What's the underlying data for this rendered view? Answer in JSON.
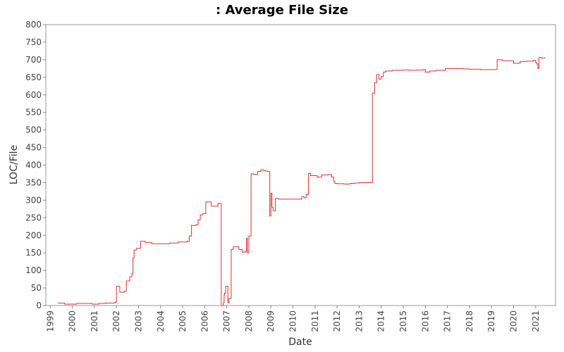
{
  "chart_data": {
    "type": "line",
    "title": ": Average File Size",
    "xlabel": "Date",
    "ylabel": "LOC/File",
    "xlim": [
      1998.8,
      2021.9
    ],
    "ylim": [
      0,
      800
    ],
    "y_ticks": [
      0,
      50,
      100,
      150,
      200,
      250,
      300,
      350,
      400,
      450,
      500,
      550,
      600,
      650,
      700,
      750,
      800
    ],
    "x_ticks": [
      "1999",
      "2000",
      "2001",
      "2002",
      "2003",
      "2004",
      "2005",
      "2006",
      "2007",
      "2008",
      "2009",
      "2010",
      "2011",
      "2012",
      "2013",
      "2014",
      "2015",
      "2016",
      "2017",
      "2018",
      "2019",
      "2020",
      "2021"
    ],
    "grid": false,
    "line_color": "#dd3333",
    "series": [
      {
        "step": true,
        "x": [
          1999.35,
          1999.65,
          2000.2,
          2000.5,
          2000.9,
          2001.2,
          2001.5,
          2001.9,
          2001.95,
          2002.0,
          2002.15,
          2002.35,
          2002.45,
          2002.6,
          2002.7,
          2002.75,
          2002.8,
          2002.9,
          2003.1,
          2003.3,
          2003.6,
          2004.0,
          2004.4,
          2004.8,
          2005.2,
          2005.3,
          2005.4,
          2005.6,
          2005.7,
          2005.8,
          2005.9,
          2006.05,
          2006.3,
          2006.6,
          2006.75,
          2006.85,
          2006.88,
          2006.9,
          2006.95,
          2007.05,
          2007.1,
          2007.2,
          2007.3,
          2007.5,
          2007.55,
          2007.7,
          2007.85,
          2007.9,
          2007.93,
          2008.0,
          2008.1,
          2008.2,
          2008.4,
          2008.55,
          2008.65,
          2008.75,
          2008.85,
          2008.95,
          2009.0,
          2009.05,
          2009.1,
          2009.2,
          2009.35,
          2009.5,
          2010.0,
          2010.4,
          2010.5,
          2010.6,
          2010.7,
          2010.8,
          2011.1,
          2011.3,
          2011.6,
          2011.75,
          2011.85,
          2011.9,
          2012.0,
          2012.3,
          2012.6,
          2012.8,
          2013.0,
          2013.2,
          2013.5,
          2013.6,
          2013.7,
          2013.8,
          2013.9,
          2014.0,
          2014.1,
          2014.2,
          2014.5,
          2015.0,
          2015.3,
          2015.6,
          2015.9,
          2016.0,
          2016.2,
          2016.5,
          2016.9,
          2017.4,
          2017.7,
          2018.0,
          2018.5,
          2019.0,
          2019.25,
          2019.5,
          2019.8,
          2020.0,
          2020.3,
          2020.6,
          2020.9,
          2021.0,
          2021.05,
          2021.1,
          2021.15,
          2021.25,
          2021.45
        ],
        "y": [
          7,
          4,
          6,
          6,
          4,
          6,
          7,
          8,
          10,
          55,
          38,
          40,
          70,
          82,
          90,
          135,
          158,
          163,
          183,
          180,
          176,
          176,
          178,
          181,
          183,
          198,
          228,
          230,
          244,
          258,
          262,
          295,
          283,
          291,
          0,
          8,
          30,
          35,
          55,
          8,
          20,
          160,
          168,
          168,
          160,
          152,
          155,
          192,
          150,
          198,
          375,
          374,
          382,
          387,
          385,
          383,
          382,
          255,
          320,
          280,
          270,
          305,
          303,
          303,
          303,
          310,
          307,
          316,
          376,
          370,
          366,
          372,
          373,
          366,
          353,
          348,
          347,
          346,
          348,
          349,
          350,
          350,
          350,
          605,
          635,
          658,
          645,
          652,
          665,
          668,
          670,
          671,
          670,
          671,
          672,
          665,
          668,
          670,
          675,
          675,
          674,
          673,
          672,
          672,
          700,
          697,
          697,
          690,
          695,
          696,
          698,
          692,
          688,
          675,
          706,
          705,
          705
        ]
      }
    ]
  }
}
